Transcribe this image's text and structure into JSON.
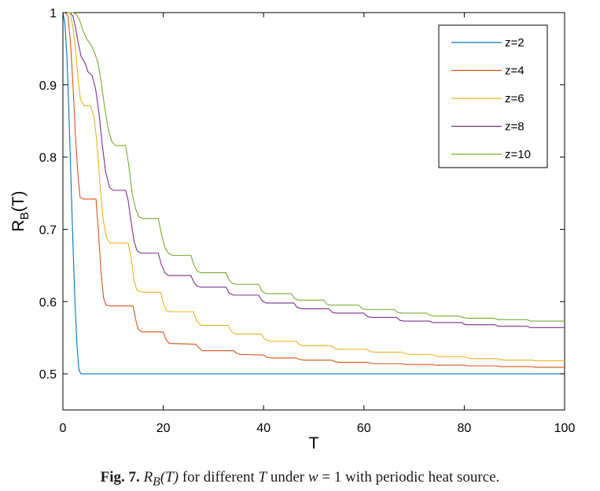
{
  "chart_data": {
    "type": "line",
    "xlabel": "T",
    "ylabel": "R",
    "ylabel_sub": "B",
    "ylabel_suffix": "(T)",
    "xlim": [
      0,
      100
    ],
    "ylim": [
      0.45,
      1.0
    ],
    "xticks": [
      0,
      20,
      40,
      60,
      80,
      100
    ],
    "xtick_labels": [
      "0",
      "20",
      "40",
      "60",
      "80",
      "100"
    ],
    "yticks": [
      0.5,
      0.6,
      0.7,
      0.8,
      0.9,
      1.0
    ],
    "ytick_labels": [
      "0.5",
      "0.6",
      "0.7",
      "0.8",
      "0.9",
      "1"
    ],
    "grid": false,
    "legend_position": "top-right",
    "series": [
      {
        "name": "z=2",
        "color": "#0072BD",
        "points": [
          [
            0,
            1.0
          ],
          [
            0.4,
            0.985
          ],
          [
            0.8,
            0.94
          ],
          [
            1.2,
            0.86
          ],
          [
            1.6,
            0.77
          ],
          [
            2.0,
            0.68
          ],
          [
            2.4,
            0.6
          ],
          [
            2.8,
            0.54
          ],
          [
            3.2,
            0.505
          ],
          [
            3.6,
            0.5
          ],
          [
            100,
            0.5
          ]
        ]
      },
      {
        "name": "z=4",
        "color": "#D95319",
        "points": [
          [
            0,
            1.0
          ],
          [
            0.5,
            1.0
          ],
          [
            1.0,
            0.995
          ],
          [
            1.5,
            0.96
          ],
          [
            2.0,
            0.9
          ],
          [
            2.5,
            0.83
          ],
          [
            3.0,
            0.775
          ],
          [
            3.4,
            0.745
          ],
          [
            4.0,
            0.742
          ],
          [
            6.6,
            0.742
          ],
          [
            7.1,
            0.695
          ],
          [
            7.6,
            0.64
          ],
          [
            8.1,
            0.605
          ],
          [
            8.6,
            0.595
          ],
          [
            9.5,
            0.594
          ],
          [
            14.0,
            0.594
          ],
          [
            14.5,
            0.575
          ],
          [
            15.0,
            0.562
          ],
          [
            15.7,
            0.558
          ],
          [
            20.0,
            0.558
          ],
          [
            20.5,
            0.548
          ],
          [
            21.2,
            0.542
          ],
          [
            26.5,
            0.541
          ],
          [
            27.0,
            0.537
          ],
          [
            27.7,
            0.532
          ],
          [
            34.0,
            0.532
          ],
          [
            34.5,
            0.529
          ],
          [
            35.2,
            0.527
          ],
          [
            40.0,
            0.526
          ],
          [
            40.6,
            0.523
          ],
          [
            41.5,
            0.522
          ],
          [
            46.5,
            0.522
          ],
          [
            47.2,
            0.52
          ],
          [
            48.0,
            0.519
          ],
          [
            53.5,
            0.519
          ],
          [
            54.2,
            0.517
          ],
          [
            55.0,
            0.516
          ],
          [
            60.5,
            0.516
          ],
          [
            61.2,
            0.515
          ],
          [
            62.0,
            0.514
          ],
          [
            67.5,
            0.514
          ],
          [
            68.2,
            0.513
          ],
          [
            69.0,
            0.513
          ],
          [
            73.5,
            0.513
          ],
          [
            74.2,
            0.512
          ],
          [
            75.0,
            0.512
          ],
          [
            80.0,
            0.512
          ],
          [
            80.7,
            0.511
          ],
          [
            81.5,
            0.511
          ],
          [
            86.5,
            0.511
          ],
          [
            87.2,
            0.51
          ],
          [
            88.0,
            0.51
          ],
          [
            93.5,
            0.51
          ],
          [
            94.2,
            0.509
          ],
          [
            100,
            0.509
          ]
        ]
      },
      {
        "name": "z=6",
        "color": "#EDB120",
        "points": [
          [
            0,
            1.0
          ],
          [
            1.0,
            1.0
          ],
          [
            1.5,
            0.997
          ],
          [
            2.0,
            0.98
          ],
          [
            2.5,
            0.95
          ],
          [
            3.0,
            0.91
          ],
          [
            3.5,
            0.88
          ],
          [
            4.2,
            0.871
          ],
          [
            5.5,
            0.871
          ],
          [
            6.2,
            0.855
          ],
          [
            6.8,
            0.82
          ],
          [
            7.4,
            0.76
          ],
          [
            8.0,
            0.715
          ],
          [
            8.7,
            0.688
          ],
          [
            9.4,
            0.681
          ],
          [
            13.0,
            0.681
          ],
          [
            13.6,
            0.66
          ],
          [
            14.2,
            0.628
          ],
          [
            14.8,
            0.615
          ],
          [
            16.0,
            0.613
          ],
          [
            19.5,
            0.613
          ],
          [
            20.0,
            0.598
          ],
          [
            20.6,
            0.587
          ],
          [
            21.5,
            0.586
          ],
          [
            26.0,
            0.586
          ],
          [
            26.6,
            0.574
          ],
          [
            27.5,
            0.567
          ],
          [
            33.0,
            0.567
          ],
          [
            33.6,
            0.558
          ],
          [
            34.5,
            0.555
          ],
          [
            39.5,
            0.555
          ],
          [
            40.2,
            0.548
          ],
          [
            41.2,
            0.545
          ],
          [
            46.5,
            0.545
          ],
          [
            47.2,
            0.54
          ],
          [
            48.0,
            0.539
          ],
          [
            53.5,
            0.539
          ],
          [
            54.2,
            0.535
          ],
          [
            55.0,
            0.534
          ],
          [
            60.5,
            0.534
          ],
          [
            61.2,
            0.531
          ],
          [
            62.0,
            0.53
          ],
          [
            67.5,
            0.53
          ],
          [
            68.2,
            0.528
          ],
          [
            69.0,
            0.527
          ],
          [
            73.5,
            0.527
          ],
          [
            74.2,
            0.525
          ],
          [
            75.0,
            0.524
          ],
          [
            80.0,
            0.524
          ],
          [
            80.7,
            0.522
          ],
          [
            81.5,
            0.521
          ],
          [
            86.5,
            0.521
          ],
          [
            87.2,
            0.52
          ],
          [
            88.0,
            0.519
          ],
          [
            93.5,
            0.519
          ],
          [
            94.2,
            0.518
          ],
          [
            100,
            0.518
          ]
        ]
      },
      {
        "name": "z=8",
        "color": "#7E2F8E",
        "points": [
          [
            0,
            1.0
          ],
          [
            1.5,
            1.0
          ],
          [
            2.0,
            0.995
          ],
          [
            2.5,
            0.98
          ],
          [
            3.0,
            0.96
          ],
          [
            3.6,
            0.94
          ],
          [
            4.4,
            0.93
          ],
          [
            5.0,
            0.918
          ],
          [
            5.8,
            0.913
          ],
          [
            6.5,
            0.895
          ],
          [
            7.2,
            0.86
          ],
          [
            7.8,
            0.82
          ],
          [
            8.5,
            0.78
          ],
          [
            9.3,
            0.758
          ],
          [
            10.0,
            0.754
          ],
          [
            12.5,
            0.754
          ],
          [
            13.0,
            0.74
          ],
          [
            13.6,
            0.71
          ],
          [
            14.2,
            0.683
          ],
          [
            14.8,
            0.67
          ],
          [
            15.6,
            0.667
          ],
          [
            19.0,
            0.667
          ],
          [
            19.6,
            0.652
          ],
          [
            20.3,
            0.64
          ],
          [
            21.0,
            0.636
          ],
          [
            25.5,
            0.636
          ],
          [
            26.1,
            0.627
          ],
          [
            26.8,
            0.621
          ],
          [
            27.5,
            0.62
          ],
          [
            32.5,
            0.62
          ],
          [
            33.1,
            0.612
          ],
          [
            34.0,
            0.609
          ],
          [
            39.0,
            0.609
          ],
          [
            39.7,
            0.601
          ],
          [
            40.5,
            0.598
          ],
          [
            46.0,
            0.598
          ],
          [
            46.7,
            0.592
          ],
          [
            47.6,
            0.59
          ],
          [
            53.0,
            0.59
          ],
          [
            53.7,
            0.585
          ],
          [
            54.5,
            0.584
          ],
          [
            60.0,
            0.584
          ],
          [
            60.7,
            0.579
          ],
          [
            61.5,
            0.578
          ],
          [
            66.5,
            0.578
          ],
          [
            67.2,
            0.574
          ],
          [
            68.0,
            0.573
          ],
          [
            73.0,
            0.573
          ],
          [
            73.7,
            0.571
          ],
          [
            74.5,
            0.571
          ],
          [
            79.5,
            0.571
          ],
          [
            80.2,
            0.568
          ],
          [
            81.0,
            0.568
          ],
          [
            86.0,
            0.568
          ],
          [
            86.7,
            0.566
          ],
          [
            87.5,
            0.566
          ],
          [
            92.5,
            0.566
          ],
          [
            93.2,
            0.564
          ],
          [
            100,
            0.564
          ]
        ]
      },
      {
        "name": "z=10",
        "color": "#77AC30",
        "points": [
          [
            0,
            1.0
          ],
          [
            2.0,
            1.0
          ],
          [
            2.6,
            0.998
          ],
          [
            3.3,
            0.99
          ],
          [
            4.0,
            0.975
          ],
          [
            4.8,
            0.963
          ],
          [
            5.6,
            0.955
          ],
          [
            6.3,
            0.945
          ],
          [
            7.0,
            0.93
          ],
          [
            7.6,
            0.905
          ],
          [
            8.3,
            0.87
          ],
          [
            9.0,
            0.84
          ],
          [
            9.7,
            0.822
          ],
          [
            10.5,
            0.816
          ],
          [
            12.5,
            0.816
          ],
          [
            13.1,
            0.79
          ],
          [
            13.8,
            0.75
          ],
          [
            14.5,
            0.728
          ],
          [
            15.2,
            0.717
          ],
          [
            16.0,
            0.715
          ],
          [
            19.0,
            0.715
          ],
          [
            19.6,
            0.695
          ],
          [
            20.3,
            0.675
          ],
          [
            21.0,
            0.667
          ],
          [
            21.8,
            0.664
          ],
          [
            25.5,
            0.664
          ],
          [
            26.1,
            0.651
          ],
          [
            26.8,
            0.642
          ],
          [
            27.5,
            0.64
          ],
          [
            32.5,
            0.64
          ],
          [
            33.1,
            0.63
          ],
          [
            33.8,
            0.625
          ],
          [
            34.5,
            0.624
          ],
          [
            39.0,
            0.624
          ],
          [
            39.7,
            0.614
          ],
          [
            40.5,
            0.611
          ],
          [
            45.5,
            0.611
          ],
          [
            46.2,
            0.604
          ],
          [
            47.0,
            0.602
          ],
          [
            52.0,
            0.602
          ],
          [
            52.7,
            0.596
          ],
          [
            53.5,
            0.595
          ],
          [
            59.0,
            0.595
          ],
          [
            59.7,
            0.59
          ],
          [
            60.5,
            0.589
          ],
          [
            66.0,
            0.589
          ],
          [
            66.7,
            0.585
          ],
          [
            67.5,
            0.584
          ],
          [
            72.5,
            0.584
          ],
          [
            73.2,
            0.581
          ],
          [
            74.0,
            0.58
          ],
          [
            79.0,
            0.58
          ],
          [
            79.7,
            0.578
          ],
          [
            80.5,
            0.577
          ],
          [
            86.0,
            0.577
          ],
          [
            86.7,
            0.575
          ],
          [
            87.5,
            0.575
          ],
          [
            92.5,
            0.575
          ],
          [
            93.2,
            0.573
          ],
          [
            100,
            0.573
          ]
        ]
      }
    ]
  },
  "caption": {
    "fig_label": "Fig. 7.",
    "symbol_R": "R",
    "symbol_B": "B",
    "symbol_T": "(T)",
    "text1": " for different ",
    "T": "T",
    "text2": " under ",
    "w": "w",
    "text3": " = 1 with periodic heat source."
  }
}
